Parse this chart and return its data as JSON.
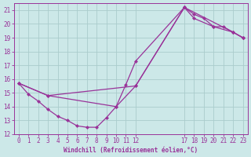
{
  "xlabel": "Windchill (Refroidissement éolien,°C)",
  "bg_color": "#cce8e8",
  "line_color": "#993399",
  "grid_color": "#aacccc",
  "axis_color": "#993399",
  "ylim": [
    12,
    21.5
  ],
  "yticks": [
    12,
    13,
    14,
    15,
    16,
    17,
    18,
    19,
    20,
    21
  ],
  "xlim": [
    -0.5,
    23.5
  ],
  "xtick_positions": [
    0,
    1,
    2,
    3,
    4,
    5,
    6,
    7,
    8,
    9,
    10,
    11,
    12,
    17,
    18,
    19,
    20,
    21,
    22,
    23
  ],
  "xtick_labels": [
    "0",
    "1",
    "2",
    "3",
    "4",
    "5",
    "6",
    "7",
    "8",
    "9",
    "10",
    "11",
    "12",
    "17",
    "18",
    "19",
    "20",
    "21",
    "22",
    "23"
  ],
  "line1_x": [
    0,
    1,
    2,
    3,
    4,
    5,
    6,
    7,
    8,
    9,
    10,
    11,
    12,
    17,
    18,
    19,
    20,
    21,
    22,
    23
  ],
  "line1_y": [
    15.7,
    14.9,
    14.4,
    13.8,
    13.3,
    13.0,
    12.6,
    12.5,
    12.5,
    13.2,
    14.0,
    15.6,
    17.3,
    21.2,
    20.7,
    20.4,
    19.8,
    19.8,
    19.4,
    19.0
  ],
  "line2_x": [
    0,
    3,
    10,
    12,
    17,
    18,
    20,
    22,
    23
  ],
  "line2_y": [
    15.7,
    14.8,
    14.0,
    15.5,
    21.2,
    20.4,
    19.8,
    19.4,
    19.0
  ],
  "line3_x": [
    0,
    3,
    12,
    17,
    22,
    23
  ],
  "line3_y": [
    15.7,
    14.8,
    15.5,
    21.2,
    19.4,
    19.0
  ],
  "xlabel_fontsize": 5.5,
  "tick_fontsize": 5.5
}
